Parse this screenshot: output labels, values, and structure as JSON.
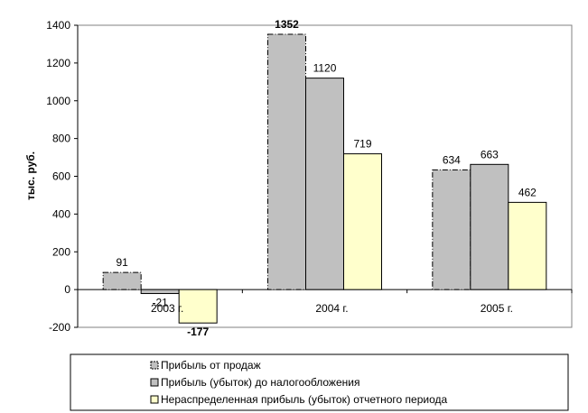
{
  "chart_data": {
    "type": "bar",
    "ylabel": "тыс. руб.",
    "ylim": [
      -200,
      1400
    ],
    "yticks": [
      -200,
      0,
      200,
      400,
      600,
      800,
      1000,
      1200,
      1400
    ],
    "categories": [
      "2003 г.",
      "2004 г.",
      "2005 г."
    ],
    "grid": false,
    "legend_position": "bottom",
    "series": [
      {
        "name": "Прибыль от продаж",
        "values": [
          91,
          1352,
          634
        ],
        "labels": [
          "91",
          "1352",
          "634"
        ],
        "color": "#c0c0c0",
        "label_weight": [
          "normal",
          "bold",
          "normal"
        ]
      },
      {
        "name": "Прибыль (убыток) до налогообложения",
        "values": [
          -21,
          1120,
          663
        ],
        "labels": [
          "-21",
          "1120",
          "663"
        ],
        "color": "#c0c0c0",
        "label_weight": [
          "normal",
          "normal",
          "normal"
        ]
      },
      {
        "name": "Нераспределенная прибыль (убыток) отчетного периода",
        "values": [
          -177,
          719,
          462
        ],
        "labels": [
          "-177",
          "719",
          "462"
        ],
        "color": "#ffffcc",
        "label_weight": [
          "bold",
          "normal",
          "normal"
        ]
      }
    ]
  }
}
